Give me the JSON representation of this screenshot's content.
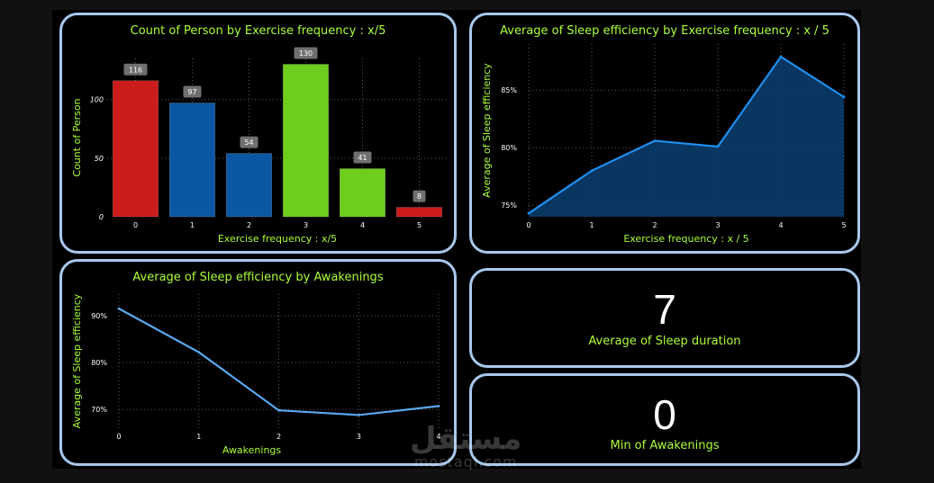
{
  "chart_data": [
    {
      "type": "bar",
      "title": "Count of Person by Exercise frequency : x/5",
      "xlabel": "Exercise frequency : x/5",
      "ylabel": "Count of Person",
      "categories": [
        "0",
        "1",
        "2",
        "3",
        "4",
        "5"
      ],
      "values": [
        116,
        97,
        54,
        130,
        41,
        8
      ],
      "colors": [
        "#cc1b1b",
        "#0b57a4",
        "#0b57a4",
        "#6ece1c",
        "#6ece1c",
        "#cc1b1b"
      ],
      "yticks": [
        0,
        50,
        100
      ],
      "ylim": [
        0,
        135
      ],
      "grid": true
    },
    {
      "type": "area",
      "title": "Average of Sleep efficiency by Exercise frequency : x / 5",
      "xlabel": "Exercise frequency : x / 5",
      "ylabel": "Average of Sleep efficiency",
      "x": [
        0,
        1,
        2,
        3,
        4,
        5
      ],
      "y": [
        74.3,
        78.0,
        80.6,
        80.1,
        87.9,
        84.4
      ],
      "yticks": [
        75,
        80,
        85
      ],
      "ytick_labels": [
        "75%",
        "80%",
        "85%"
      ],
      "ylim": [
        74.0,
        89.0
      ],
      "line_color": "#1f8ff0",
      "fill_color": "#0a3866",
      "grid": true
    },
    {
      "type": "line",
      "title": "Average of Sleep efficiency by Awakenings",
      "xlabel": "Awakenings",
      "ylabel": "Average of Sleep efficiency",
      "x": [
        0,
        1,
        2,
        3,
        4
      ],
      "y": [
        91.5,
        82.2,
        69.8,
        68.8,
        70.7
      ],
      "yticks": [
        70,
        80,
        90
      ],
      "ytick_labels": [
        "70%",
        "80%",
        "90%"
      ],
      "ylim": [
        66.0,
        94.6
      ],
      "line_color": "#5aa8ef",
      "grid": true
    }
  ],
  "cards": [
    {
      "value": "7",
      "label": "Average of Sleep duration"
    },
    {
      "value": "0",
      "label": "Min of Awakenings"
    }
  ],
  "watermark": {
    "arabic": "مستقل",
    "latin": "mostaql.com"
  }
}
